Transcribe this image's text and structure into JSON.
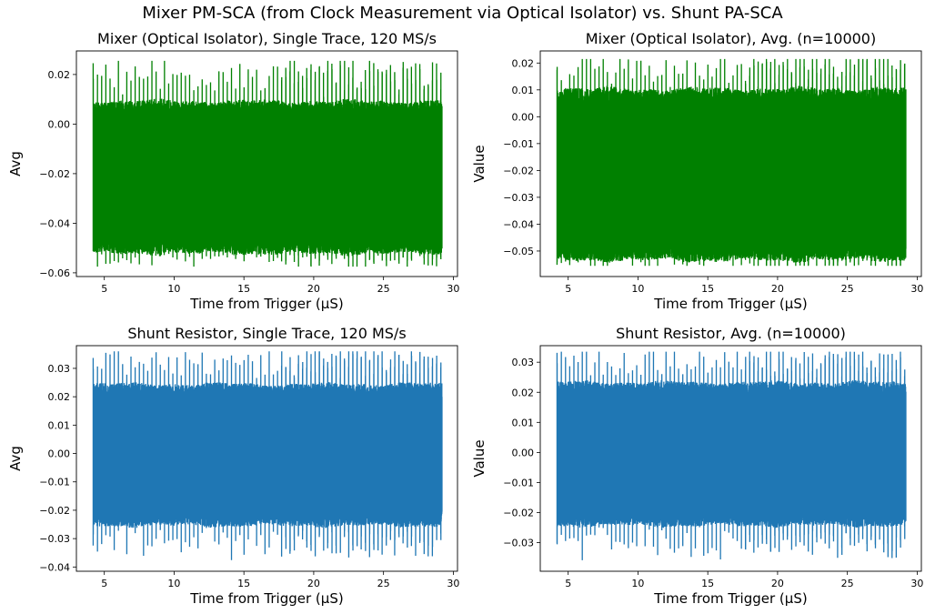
{
  "figure": {
    "title": "Mixer PM-SCA (from Clock Measurement via Optical Isolator) vs. Shunt PA-SCA"
  },
  "chart_data": [
    {
      "id": "mixer-single",
      "type": "line",
      "title": "Mixer (Optical Isolator), Single Trace, 120 MS/s",
      "xlabel": "Time from Trigger (μS)",
      "ylabel": "Avg",
      "color": "#008000",
      "xlim": [
        3.0,
        30.3
      ],
      "ylim": [
        -0.0615,
        0.0295
      ],
      "xticks": [
        5,
        10,
        15,
        20,
        25,
        30
      ],
      "yticks": [
        -0.06,
        -0.04,
        -0.02,
        0.0,
        0.02
      ],
      "ytick_labels": [
        "−0.06",
        "−0.04",
        "−0.02",
        "0.00",
        "0.02"
      ],
      "signal": {
        "x_start": 4.2,
        "x_end": 29.2,
        "lower_base": -0.048,
        "upper_base": 0.005,
        "spike_period_us": 0.3,
        "upper_max": 0.0255,
        "lower_min": -0.0575
      }
    },
    {
      "id": "mixer-avg",
      "type": "line",
      "title": "Mixer (Optical Isolator), Avg. (n=10000)",
      "xlabel": "Time from Trigger (μS)",
      "ylabel": "Value",
      "color": "#008000",
      "xlim": [
        3.0,
        30.3
      ],
      "ylim": [
        -0.0595,
        0.0245
      ],
      "xticks": [
        5,
        10,
        15,
        20,
        25,
        30
      ],
      "yticks": [
        -0.05,
        -0.04,
        -0.03,
        -0.02,
        -0.01,
        0.0,
        0.01,
        0.02
      ],
      "ytick_labels": [
        "−0.05",
        "−0.04",
        "−0.03",
        "−0.02",
        "−0.01",
        "0.00",
        "0.01",
        "0.02"
      ],
      "signal": {
        "x_start": 4.2,
        "x_end": 29.2,
        "lower_base": -0.049,
        "upper_base": 0.006,
        "spike_period_us": 0.3,
        "upper_max": 0.0215,
        "lower_min": -0.0555
      }
    },
    {
      "id": "shunt-single",
      "type": "line",
      "title": "Shunt Resistor, Single Trace, 120 MS/s",
      "xlabel": "Time from Trigger (μS)",
      "ylabel": "Avg",
      "color": "#1f77b4",
      "xlim": [
        3.0,
        30.3
      ],
      "ylim": [
        -0.0415,
        0.038
      ],
      "xticks": [
        5,
        10,
        15,
        20,
        25,
        30
      ],
      "yticks": [
        -0.04,
        -0.03,
        -0.02,
        -0.01,
        0.0,
        0.01,
        0.02,
        0.03
      ],
      "ytick_labels": [
        "−0.04",
        "−0.03",
        "−0.02",
        "−0.01",
        "0.00",
        "0.01",
        "0.02",
        "0.03"
      ],
      "signal": {
        "x_start": 4.2,
        "x_end": 29.2,
        "lower_base": -0.022,
        "upper_base": 0.021,
        "spike_period_us": 0.3,
        "upper_max": 0.036,
        "lower_min": -0.038
      }
    },
    {
      "id": "shunt-avg",
      "type": "line",
      "title": "Shunt Resistor, Avg. (n=10000)",
      "xlabel": "Time from Trigger (μS)",
      "ylabel": "Value",
      "color": "#1f77b4",
      "xlim": [
        3.0,
        30.3
      ],
      "ylim": [
        -0.0395,
        0.0355
      ],
      "xticks": [
        5,
        10,
        15,
        20,
        25,
        30
      ],
      "yticks": [
        -0.03,
        -0.02,
        -0.01,
        0.0,
        0.01,
        0.02,
        0.03
      ],
      "ytick_labels": [
        "−0.03",
        "−0.02",
        "−0.01",
        "0.00",
        "0.01",
        "0.02",
        "0.03"
      ],
      "signal": {
        "x_start": 4.2,
        "x_end": 29.2,
        "lower_base": -0.021,
        "upper_base": 0.02,
        "spike_period_us": 0.3,
        "upper_max": 0.0335,
        "lower_min": -0.036
      }
    }
  ]
}
